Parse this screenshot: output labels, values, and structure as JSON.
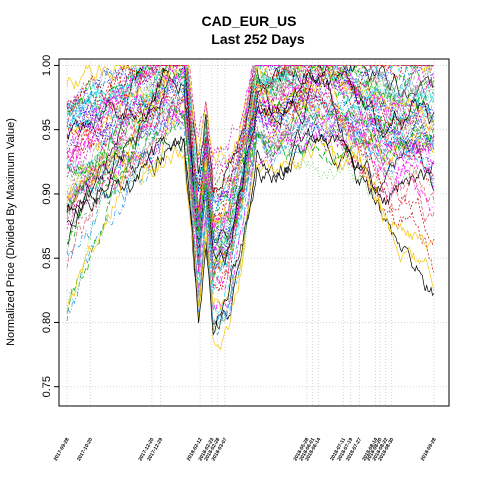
{
  "chart_data": {
    "type": "line",
    "title": "CAD_EUR_US",
    "subtitle": "Last 252 Days",
    "ylabel": "Normalized Price (Divided By Maximum Value)",
    "xlabel": "",
    "ylim": [
      0.735,
      1.005
    ],
    "y_ticks": [
      0.75,
      0.8,
      0.85,
      0.9,
      0.95,
      1.0
    ],
    "y_tick_labels": [
      "0.75",
      "0.80",
      "0.85",
      "0.90",
      "0.95",
      "1.00"
    ],
    "grid": true,
    "x_tick_labels": [
      {
        "i": 0,
        "label": "2017-09-28"
      },
      {
        "i": 16,
        "label": "2017-10-20"
      },
      {
        "i": 58,
        "label": "2017-12-20"
      },
      {
        "i": 64,
        "label": "2017-12-29"
      },
      {
        "i": 91,
        "label": "2018-02-12"
      },
      {
        "i": 99,
        "label": "2018-02-23"
      },
      {
        "i": 103,
        "label": "2018-02-28"
      },
      {
        "i": 108,
        "label": "2018-03-07"
      },
      {
        "i": 164,
        "label": "2018-05-28"
      },
      {
        "i": 168,
        "label": "2018-06-01"
      },
      {
        "i": 172,
        "label": "2018-06-14"
      },
      {
        "i": 189,
        "label": "2018-07-11"
      },
      {
        "i": 194,
        "label": "2018-07-19"
      },
      {
        "i": 200,
        "label": "2018-07-27"
      },
      {
        "i": 211,
        "label": "2018-08-14"
      },
      {
        "i": 214,
        "label": "2018-08-20"
      },
      {
        "i": 218,
        "label": "2018-08-22"
      },
      {
        "i": 222,
        "label": "2018-08-30"
      },
      {
        "i": 251,
        "label": "2018-09-28"
      }
    ],
    "n_days": 252,
    "n_series": 60,
    "palette": [
      "#000000",
      "#DF536B",
      "#61D04F",
      "#2297E6",
      "#28E2E5",
      "#CD0BBC",
      "#F5C710",
      "#9E9E9E",
      "#0000FF",
      "#FF00FF",
      "#00AA00",
      "#CC0000"
    ],
    "template_series": [
      {
        "name": "",
        "x": [
          0,
          20,
          40,
          60,
          70,
          80,
          85,
          90,
          95,
          100,
          110,
          120,
          130,
          140,
          150,
          160,
          170,
          180,
          190,
          200,
          210,
          220,
          230,
          240,
          251
        ],
        "y": [
          0.94,
          0.95,
          0.96,
          0.965,
          0.985,
          0.99,
          0.93,
          0.87,
          0.92,
          0.86,
          0.87,
          0.91,
          0.97,
          0.96,
          0.97,
          0.975,
          0.98,
          0.975,
          0.97,
          0.965,
          0.96,
          0.955,
          0.96,
          0.965,
          0.96
        ]
      }
    ]
  }
}
